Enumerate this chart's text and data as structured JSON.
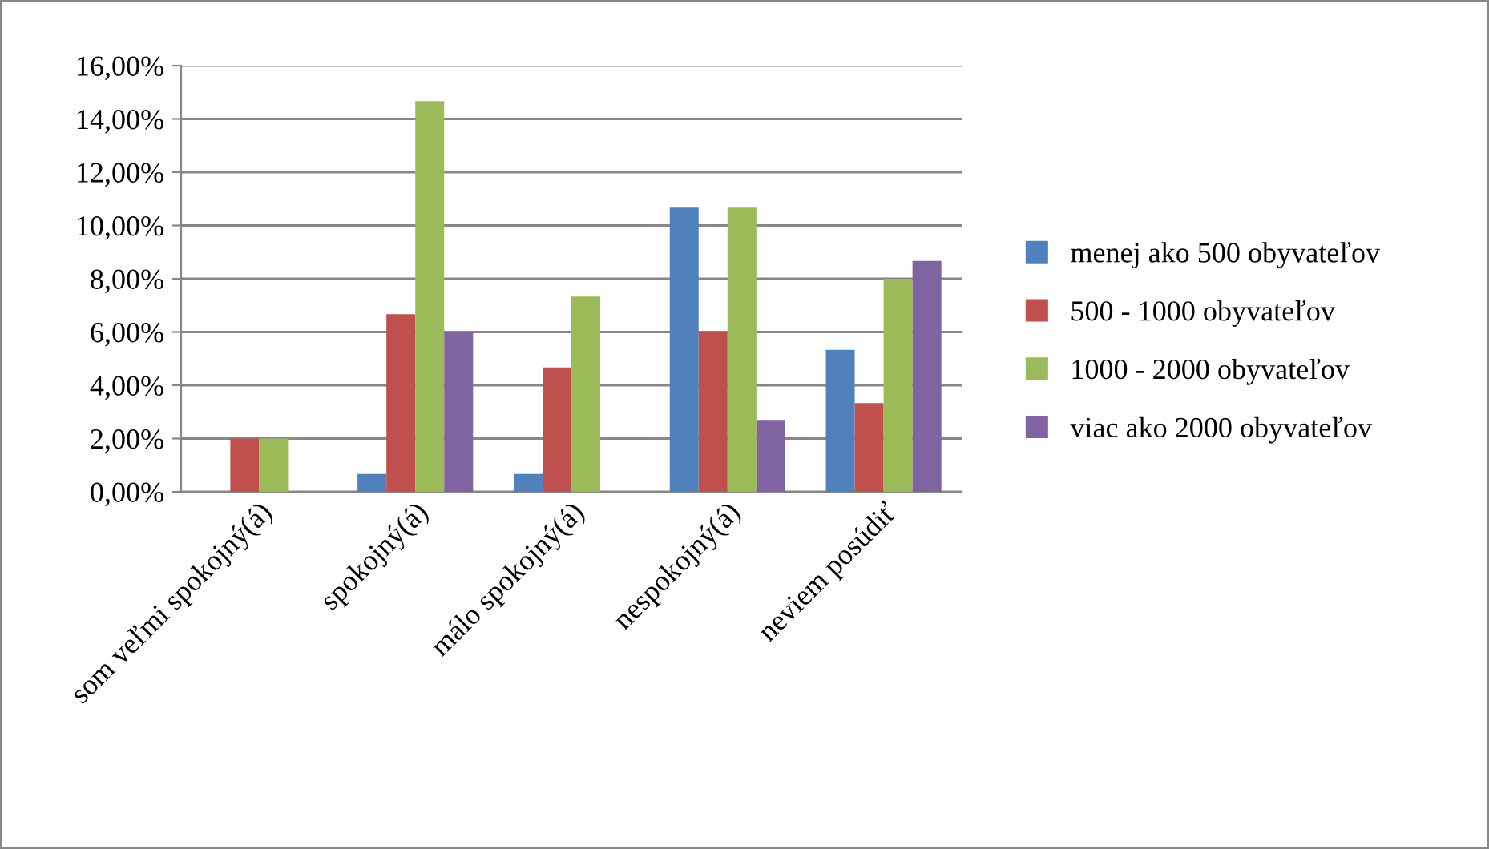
{
  "chart_data": {
    "type": "bar",
    "categories": [
      "som veľmi spokojný(á)",
      "spokojný(á)",
      "málo spokojný(á)",
      "nespokojný(á)",
      "neviem posúdiť"
    ],
    "series": [
      {
        "name": "menej ako 500 obyvateľov",
        "color": "#4f81bd",
        "values": [
          0,
          0.67,
          0.67,
          10.67,
          5.33
        ]
      },
      {
        "name": "500 - 1000 obyvateľov",
        "color": "#c0504d",
        "values": [
          2.0,
          6.67,
          4.67,
          6.0,
          3.33
        ]
      },
      {
        "name": "1000 - 2000 obyvateľov",
        "color": "#9bbb59",
        "values": [
          2.0,
          14.67,
          7.33,
          10.67,
          8.0
        ]
      },
      {
        "name": "viac ako 2000 obyvateľov",
        "color": "#8064a2",
        "values": [
          0,
          6.0,
          0,
          2.67,
          8.67
        ]
      }
    ],
    "ylim": [
      0,
      16
    ],
    "yticks": [
      {
        "value": 0,
        "label": "0,00%"
      },
      {
        "value": 2,
        "label": "2,00%"
      },
      {
        "value": 4,
        "label": "4,00%"
      },
      {
        "value": 6,
        "label": "6,00%"
      },
      {
        "value": 8,
        "label": "8,00%"
      },
      {
        "value": 10,
        "label": "10,00%"
      },
      {
        "value": 12,
        "label": "12,00%"
      },
      {
        "value": 14,
        "label": "14,00%"
      },
      {
        "value": 16,
        "label": "16,00%"
      }
    ],
    "grid": "y",
    "legend": "right"
  }
}
